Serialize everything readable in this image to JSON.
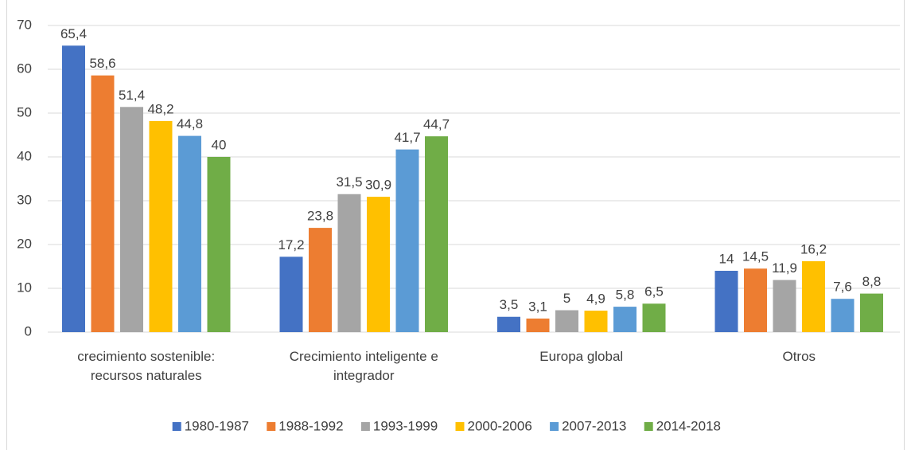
{
  "chart_data": {
    "type": "bar",
    "categories": [
      "crecimiento sostenible: recursos naturales",
      "Crecimiento inteligente e integrador",
      "Europa global",
      "Otros"
    ],
    "series": [
      {
        "name": "1980-1987",
        "color": "#4472c4",
        "values": [
          65.4,
          17.2,
          3.5,
          14
        ],
        "value_labels": [
          "65,4",
          "17,2",
          "3,5",
          "14"
        ]
      },
      {
        "name": "1988-1992",
        "color": "#ed7d31",
        "values": [
          58.6,
          23.8,
          3.1,
          14.5
        ],
        "value_labels": [
          "58,6",
          "23,8",
          "3,1",
          "14,5"
        ]
      },
      {
        "name": "1993-1999",
        "color": "#a5a5a5",
        "values": [
          51.4,
          31.5,
          5,
          11.9
        ],
        "value_labels": [
          "51,4",
          "31,5",
          "5",
          "11,9"
        ]
      },
      {
        "name": "2000-2006",
        "color": "#ffc000",
        "values": [
          48.2,
          30.9,
          4.9,
          16.2
        ],
        "value_labels": [
          "48,2",
          "30,9",
          "4,9",
          "16,2"
        ]
      },
      {
        "name": "2007-2013",
        "color": "#5b9bd5",
        "values": [
          44.8,
          41.7,
          5.8,
          7.6
        ],
        "value_labels": [
          "44,8",
          "41,7",
          "5,8",
          "7,6"
        ]
      },
      {
        "name": "2014-2018",
        "color": "#70ad47",
        "values": [
          40,
          44.7,
          6.5,
          8.8
        ],
        "value_labels": [
          "40",
          "44,7",
          "6,5",
          "8,8"
        ]
      }
    ],
    "ylim": [
      0,
      70
    ],
    "yticks": [
      0,
      10,
      20,
      30,
      40,
      50,
      60,
      70
    ],
    "grid": true,
    "legend": "bottom"
  }
}
